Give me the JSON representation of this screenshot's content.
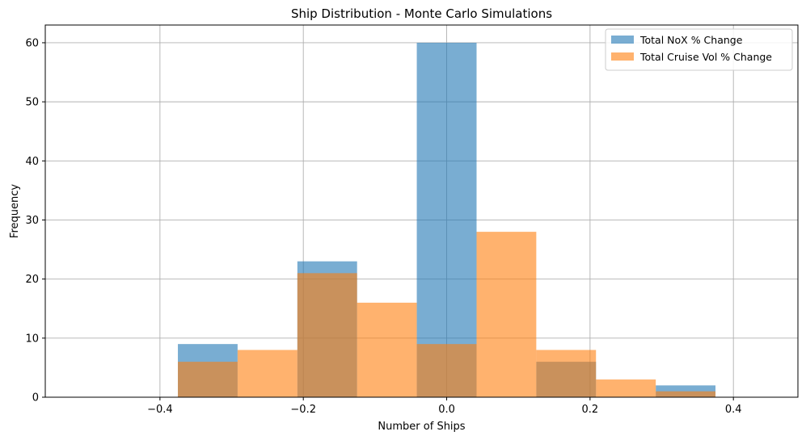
{
  "chart_data": {
    "type": "bar",
    "title": "Ship Distribution - Monte Carlo Simulations",
    "xlabel": "Number of Ships",
    "ylabel": "Frequency",
    "xlim": [
      -0.56,
      0.49
    ],
    "ylim": [
      0,
      63
    ],
    "xticks": [
      -0.4,
      -0.2,
      0.0,
      0.2,
      0.4
    ],
    "xtick_labels": [
      "−0.4",
      "−0.2",
      "0.0",
      "0.2",
      "0.4"
    ],
    "yticks": [
      0,
      10,
      20,
      30,
      40,
      50,
      60
    ],
    "ytick_labels": [
      "0",
      "10",
      "20",
      "30",
      "40",
      "50",
      "60"
    ],
    "grid": true,
    "legend_position": "top-right",
    "bin_edges": [
      -0.375,
      -0.2917,
      -0.2083,
      -0.125,
      -0.0417,
      0.0417,
      0.125,
      0.2083,
      0.2917,
      0.375
    ],
    "series": [
      {
        "name": "Total NoX % Change",
        "color": "#1f77b4",
        "opacity": 0.6,
        "values": [
          9,
          0,
          23,
          0,
          60,
          0,
          6,
          0,
          2
        ]
      },
      {
        "name": "Total Cruise Vol % Change",
        "color": "#ff7f0e",
        "opacity": 0.6,
        "values": [
          6,
          8,
          21,
          16,
          9,
          28,
          8,
          3,
          1
        ]
      }
    ]
  }
}
